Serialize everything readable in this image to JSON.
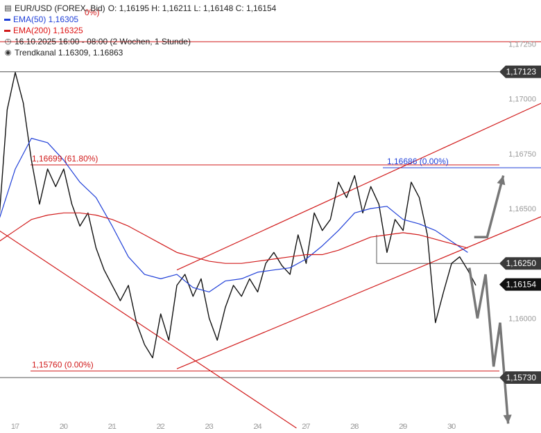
{
  "legend": {
    "symbol_line": "EUR/USD (FOREX, Bid)",
    "ohlc": "O: 1,16195  H: 1,16211  L: 1,16148  C: 1,16154",
    "ema50": "EMA(50)  1,16305",
    "ema200": "EMA(200)  1,16325",
    "period": "16.10.2025 16:00 - 08:00   (2 Wochen, 1 Stunde)",
    "trend": "Trendkanal  1.16309, 1.16863",
    "icons": {
      "symbol": "bars-icon",
      "period": "clock-icon",
      "trend": "target-icon"
    }
  },
  "colors": {
    "ema50": "#1f3fd8",
    "ema200": "#d11a1a",
    "price": "#111111",
    "projection": "#777777",
    "badge": "#3a3a3a"
  },
  "annotations": {
    "fib_618": "1,16699 (61.80%)",
    "level_top": "1,16686 (0.00%)",
    "low": "1,15760 (0.00%)",
    "top_partial": "0%)"
  },
  "chart_data": {
    "type": "line",
    "title": "EUR/USD (FOREX, Bid)",
    "ylim": [
      1.1555,
      1.1745
    ],
    "y_ticks": [
      "1,17250",
      "1,17000",
      "1,16750",
      "1,16500",
      "1,16000"
    ],
    "y_tick_values": [
      1.1725,
      1.17,
      1.1675,
      1.165,
      1.16
    ],
    "price_badges": [
      {
        "label": "1,17123",
        "value": 1.17123
      },
      {
        "label": "1,16250",
        "value": 1.1625
      },
      {
        "label": "1,16154",
        "value": 1.16154,
        "current": true
      },
      {
        "label": "1,15730",
        "value": 1.1573
      }
    ],
    "x_ticks": [
      "17",
      "20",
      "21",
      "22",
      "23",
      "24",
      "27",
      "28",
      "29",
      "30"
    ],
    "x_tick_index": [
      1,
      4,
      7,
      10,
      13,
      16,
      19,
      22,
      25,
      28
    ],
    "x_index_range": [
      0,
      38
    ],
    "series": [
      {
        "name": "EUR/USD",
        "x": [
          0,
          0.5,
          1,
          1.5,
          2,
          2.5,
          3,
          3.5,
          4,
          4.5,
          5,
          5.5,
          6,
          6.5,
          7,
          7.5,
          8,
          8.5,
          9,
          9.5,
          10,
          10.5,
          11,
          11.5,
          12,
          12.5,
          13,
          13.5,
          14,
          14.5,
          15,
          15.5,
          16,
          16.5,
          17,
          17.5,
          18,
          18.5,
          19,
          19.5,
          20,
          20.5,
          21,
          21.5,
          22,
          22.5,
          23,
          23.5,
          24,
          24.5,
          25,
          25.5,
          26,
          26.5,
          27,
          27.5,
          28,
          28.5,
          29,
          29.5
        ],
        "values": [
          1.1645,
          1.1695,
          1.1712,
          1.1698,
          1.1672,
          1.1652,
          1.1668,
          1.166,
          1.1668,
          1.1652,
          1.1642,
          1.1648,
          1.1632,
          1.1622,
          1.1615,
          1.1608,
          1.1615,
          1.1598,
          1.1588,
          1.1582,
          1.1602,
          1.159,
          1.1615,
          1.162,
          1.161,
          1.1618,
          1.16,
          1.159,
          1.1605,
          1.1615,
          1.161,
          1.1618,
          1.1612,
          1.1625,
          1.163,
          1.1624,
          1.162,
          1.1638,
          1.1625,
          1.1648,
          1.164,
          1.1645,
          1.1662,
          1.1655,
          1.1665,
          1.1648,
          1.166,
          1.1652,
          1.163,
          1.1645,
          1.164,
          1.1662,
          1.1655,
          1.1638,
          1.1598,
          1.1612,
          1.1625,
          1.1628,
          1.1622,
          1.1615
        ]
      },
      {
        "name": "EMA(50)",
        "x": [
          0,
          1,
          2,
          3,
          4,
          5,
          6,
          7,
          8,
          9,
          10,
          11,
          12,
          13,
          14,
          15,
          16,
          17,
          18,
          19,
          20,
          21,
          22,
          23,
          24,
          25,
          26,
          27,
          28,
          29
        ],
        "values": [
          1.1645,
          1.1668,
          1.1682,
          1.168,
          1.1672,
          1.1662,
          1.1655,
          1.1642,
          1.1628,
          1.162,
          1.1618,
          1.162,
          1.1614,
          1.1612,
          1.1617,
          1.1618,
          1.1621,
          1.1622,
          1.1623,
          1.1627,
          1.1633,
          1.164,
          1.1648,
          1.165,
          1.1651,
          1.1645,
          1.1643,
          1.164,
          1.1635,
          1.163
        ]
      },
      {
        "name": "EMA(200)",
        "x": [
          0,
          1,
          2,
          3,
          4,
          5,
          6,
          7,
          8,
          9,
          10,
          11,
          12,
          13,
          14,
          15,
          16,
          17,
          18,
          19,
          20,
          21,
          22,
          23,
          24,
          25,
          26,
          27,
          28,
          29
        ],
        "values": [
          1.1635,
          1.164,
          1.1645,
          1.1647,
          1.1648,
          1.1648,
          1.1647,
          1.1645,
          1.1642,
          1.1638,
          1.1634,
          1.163,
          1.1628,
          1.1626,
          1.1625,
          1.1625,
          1.1626,
          1.1627,
          1.1628,
          1.1629,
          1.1629,
          1.1631,
          1.1634,
          1.1637,
          1.1638,
          1.1639,
          1.1638,
          1.1636,
          1.1634,
          1.1632
        ]
      }
    ],
    "horizontal_levels": [
      1.1726,
      1.17123,
      1.16699,
      1.16686,
      1.1625,
      1.1576,
      1.1573
    ],
    "trend_channel": [
      {
        "x1": 11,
        "y1": 1.1577,
        "x2": 38,
        "y2": 1.166
      },
      {
        "x1": 11,
        "y1": 1.1622,
        "x2": 38,
        "y2": 1.1713
      }
    ],
    "falling_line": {
      "x1": 0,
      "y1": 1.164,
      "x2": 18.4,
      "y2": 1.155
    },
    "projection_up": {
      "values": [
        1.1637,
        1.1637,
        1.1665
      ],
      "x": [
        29.4,
        30.2,
        31.2
      ]
    },
    "projection_down": {
      "values": [
        1.1623,
        1.16,
        1.162,
        1.1578,
        1.1598,
        1.1552
      ],
      "x": [
        29.1,
        29.6,
        30.1,
        30.6,
        31.0,
        31.5
      ]
    }
  }
}
